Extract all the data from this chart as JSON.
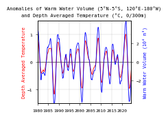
{
  "title_line1": "Anomalies of Warm Water Volume (5°N-5°S, 120°E-180°W)",
  "title_line2": "and Depth Averaged Temperature (°C, 0/300m)",
  "ylabel_left": "Depth Averaged Temperature",
  "ylabel_right": "Warm Water Volume (10⁴ m³)",
  "bg_color": "#ffffff",
  "plot_bg": "#ffffff",
  "line_color_red": "#ff0000",
  "line_color_blue": "#0000ff",
  "ylim_left": [
    -1.5,
    1.5
  ],
  "ylim_right": [
    -4.5,
    4.5
  ],
  "yticks_left": [
    -1.0,
    0.0,
    1.0
  ],
  "yticks_right": [
    -2.0,
    0.0,
    2.0
  ],
  "year_start": 1980,
  "year_end": 2024,
  "xtick_years": [
    1980,
    1985,
    1990,
    1995,
    2000,
    2005,
    2010,
    2015,
    2020
  ],
  "title_fontsize": 5.0,
  "label_fontsize": 4.8,
  "tick_fontsize": 4.5
}
